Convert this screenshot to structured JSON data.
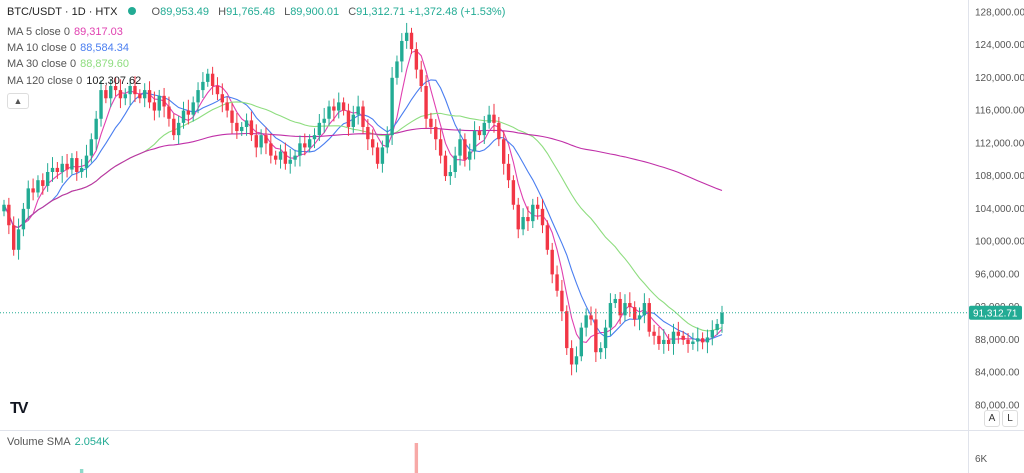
{
  "header": {
    "symbol": "BTC/USDT · 1D · HTX",
    "open_label": "O",
    "open": "89,953.49",
    "high_label": "H",
    "high": "91,765.48",
    "low_label": "L",
    "low": "89,900.01",
    "close_label": "C",
    "close": "91,312.71",
    "change": "+1,372.48 (+1.53%)"
  },
  "indicators": [
    {
      "label": "MA 5 close 0",
      "value": "89,317.03",
      "color": "#e040b0"
    },
    {
      "label": "MA 10 close 0",
      "value": "88,584.34",
      "color": "#4a7ef0"
    },
    {
      "label": "MA 30 close 0",
      "value": "88,879.60",
      "color": "#8edd7f"
    },
    {
      "label": "MA 120 close 0",
      "value": "102,307.62",
      "color": "#222222"
    }
  ],
  "volume": {
    "label": "Volume SMA",
    "value": "2.054K",
    "axis_tick": "6K"
  },
  "last_price_tag": "91,312.71",
  "axis_buttons": {
    "auto": "A",
    "log": "L"
  },
  "logo_text": "TV",
  "colors": {
    "up": "#22ab94",
    "down": "#f23645",
    "ma5": "#e040b0",
    "ma10": "#4a7ef0",
    "ma30": "#8edd7f",
    "ma120": "#c02fa8"
  },
  "chart_data": {
    "type": "candlestick",
    "y_ticks": [
      "80,000.00",
      "84,000.00",
      "88,000.00",
      "92,000.00",
      "96,000.00",
      "100,000.00",
      "104,000.00",
      "108,000.00",
      "112,000.00",
      "116,000.00",
      "120,000.00",
      "124,000.00",
      "128,000.00"
    ],
    "ylim": [
      77000,
      129500
    ],
    "last_close": 91312.71,
    "closes": [
      104500,
      102000,
      99000,
      101500,
      104000,
      106500,
      106000,
      107500,
      106800,
      108500,
      109000,
      108500,
      109500,
      108800,
      110200,
      108500,
      109000,
      110500,
      112500,
      115000,
      118500,
      117500,
      119000,
      118500,
      117500,
      118000,
      119000,
      118000,
      117500,
      118500,
      117000,
      116000,
      117800,
      116500,
      115000,
      113000,
      114500,
      116000,
      115500,
      117000,
      118500,
      119500,
      120500,
      119000,
      118000,
      117000,
      116000,
      114500,
      113500,
      114000,
      114800,
      113000,
      111500,
      113000,
      112000,
      110500,
      110000,
      111000,
      109500,
      110000,
      110500,
      112000,
      111500,
      112500,
      113000,
      114500,
      115000,
      116500,
      116000,
      117000,
      116000,
      114000,
      115500,
      116500,
      114000,
      112500,
      111500,
      109500,
      111500,
      113000,
      120000,
      122000,
      124500,
      125500,
      123500,
      121000,
      119000,
      115000,
      114000,
      112500,
      110500,
      108000,
      108500,
      110500,
      112500,
      110000,
      111000,
      113500,
      113000,
      114500,
      115500,
      114500,
      112500,
      109500,
      107500,
      104500,
      101500,
      103000,
      102500,
      104500,
      104000,
      102000,
      99000,
      96000,
      94000,
      91500,
      87000,
      85000,
      86000,
      89500,
      91000,
      90500,
      86500,
      87000,
      89500,
      92500,
      93000,
      91000,
      92500,
      92000,
      90500,
      91000,
      92500,
      89000,
      88500,
      87500,
      88000,
      87500,
      89000,
      88500,
      88000,
      87500,
      87800,
      88200,
      87700,
      88300,
      89200,
      89953,
      91313
    ]
  }
}
